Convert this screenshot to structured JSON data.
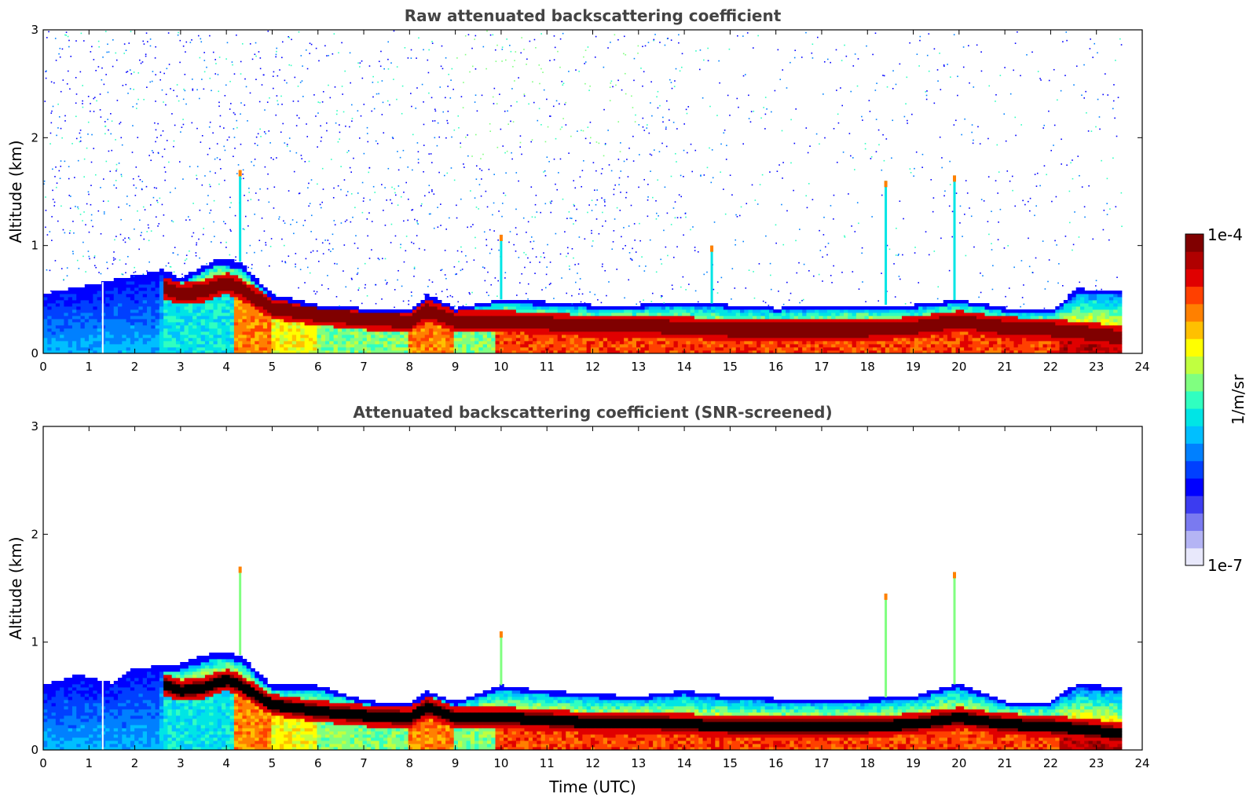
{
  "chart_data": [
    {
      "type": "heatmap",
      "title": "Raw attenuated backscattering coefficient",
      "xlabel": "",
      "ylabel": "Altitude (km)",
      "xlim": [
        0,
        24
      ],
      "ylim": [
        0,
        3
      ],
      "xticks": [
        "0",
        "1",
        "2",
        "3",
        "4",
        "5",
        "6",
        "7",
        "8",
        "9",
        "10",
        "11",
        "12",
        "13",
        "14",
        "15",
        "16",
        "17",
        "18",
        "19",
        "20",
        "21",
        "22",
        "23",
        "24"
      ],
      "yticks": [
        "0",
        "1",
        "2",
        "3"
      ],
      "data_end_time": 23.55,
      "gap_times": [
        1.3
      ],
      "boundary_layer_top_km": [
        [
          0,
          0.55
        ],
        [
          0.8,
          0.62
        ],
        [
          2,
          0.72
        ],
        [
          2.6,
          0.78
        ],
        [
          3,
          0.7
        ],
        [
          3.8,
          0.88
        ],
        [
          4.3,
          0.85
        ],
        [
          5,
          0.55
        ],
        [
          6,
          0.45
        ],
        [
          7,
          0.42
        ],
        [
          8,
          0.4
        ],
        [
          8.4,
          0.55
        ],
        [
          9,
          0.42
        ],
        [
          10,
          0.5
        ],
        [
          11,
          0.48
        ],
        [
          12,
          0.45
        ],
        [
          13,
          0.45
        ],
        [
          14,
          0.48
        ],
        [
          15,
          0.45
        ],
        [
          16,
          0.42
        ],
        [
          17,
          0.45
        ],
        [
          18,
          0.45
        ],
        [
          19,
          0.45
        ],
        [
          20,
          0.5
        ],
        [
          21,
          0.42
        ],
        [
          22,
          0.4
        ],
        [
          22.6,
          0.6
        ],
        [
          23.5,
          0.58
        ]
      ],
      "high_backscatter_layer_km": [
        [
          2.6,
          0.62
        ],
        [
          3,
          0.55
        ],
        [
          3.5,
          0.58
        ],
        [
          4,
          0.65
        ],
        [
          4.3,
          0.6
        ],
        [
          5,
          0.42
        ],
        [
          6,
          0.36
        ],
        [
          7,
          0.32
        ],
        [
          8,
          0.3
        ],
        [
          8.4,
          0.4
        ],
        [
          9,
          0.3
        ],
        [
          10,
          0.3
        ],
        [
          11,
          0.28
        ],
        [
          12,
          0.25
        ],
        [
          13,
          0.26
        ],
        [
          14,
          0.24
        ],
        [
          15,
          0.22
        ],
        [
          16,
          0.22
        ],
        [
          17,
          0.22
        ],
        [
          18,
          0.22
        ],
        [
          19,
          0.24
        ],
        [
          20,
          0.3
        ],
        [
          21,
          0.24
        ],
        [
          22,
          0.22
        ],
        [
          23,
          0.18
        ],
        [
          23.5,
          0.15
        ]
      ],
      "cloud_spikes": [
        {
          "time": 4.3,
          "top_km": 1.7
        },
        {
          "time": 10.0,
          "top_km": 1.1
        },
        {
          "time": 14.6,
          "top_km": 1.0
        },
        {
          "time": 18.4,
          "top_km": 1.6
        },
        {
          "time": 19.9,
          "top_km": 1.65
        }
      ],
      "noise": "high",
      "outline": false
    },
    {
      "type": "heatmap",
      "title": "Attenuated backscattering coefficient (SNR-screened)",
      "xlabel": "Time (UTC)",
      "ylabel": "Altitude (km)",
      "xlim": [
        0,
        24
      ],
      "ylim": [
        0,
        3
      ],
      "xticks": [
        "0",
        "1",
        "2",
        "3",
        "4",
        "5",
        "6",
        "7",
        "8",
        "9",
        "10",
        "11",
        "12",
        "13",
        "14",
        "15",
        "16",
        "17",
        "18",
        "19",
        "20",
        "21",
        "22",
        "23",
        "24"
      ],
      "yticks": [
        "0",
        "1",
        "2",
        "3"
      ],
      "data_end_time": 23.55,
      "gap_times": [
        1.3
      ],
      "boundary_layer_top_km": [
        [
          0,
          0.6
        ],
        [
          0.8,
          0.7
        ],
        [
          1.5,
          0.62
        ],
        [
          2,
          0.76
        ],
        [
          2.6,
          0.78
        ],
        [
          3,
          0.8
        ],
        [
          3.8,
          0.92
        ],
        [
          4.3,
          0.88
        ],
        [
          5,
          0.6
        ],
        [
          6,
          0.6
        ],
        [
          7,
          0.46
        ],
        [
          8,
          0.42
        ],
        [
          8.4,
          0.55
        ],
        [
          9,
          0.45
        ],
        [
          10,
          0.6
        ],
        [
          11,
          0.55
        ],
        [
          12,
          0.52
        ],
        [
          13,
          0.5
        ],
        [
          14,
          0.55
        ],
        [
          15,
          0.5
        ],
        [
          16,
          0.48
        ],
        [
          17,
          0.48
        ],
        [
          18,
          0.48
        ],
        [
          19,
          0.5
        ],
        [
          20,
          0.62
        ],
        [
          21,
          0.45
        ],
        [
          22,
          0.45
        ],
        [
          22.6,
          0.62
        ],
        [
          23.5,
          0.58
        ]
      ],
      "high_backscatter_layer_km": [
        [
          2.6,
          0.62
        ],
        [
          3,
          0.55
        ],
        [
          3.5,
          0.58
        ],
        [
          4,
          0.65
        ],
        [
          4.3,
          0.6
        ],
        [
          5,
          0.42
        ],
        [
          6,
          0.36
        ],
        [
          7,
          0.32
        ],
        [
          8,
          0.3
        ],
        [
          8.4,
          0.4
        ],
        [
          9,
          0.3
        ],
        [
          10,
          0.3
        ],
        [
          11,
          0.28
        ],
        [
          12,
          0.25
        ],
        [
          13,
          0.26
        ],
        [
          14,
          0.24
        ],
        [
          15,
          0.22
        ],
        [
          16,
          0.22
        ],
        [
          17,
          0.22
        ],
        [
          18,
          0.22
        ],
        [
          19,
          0.24
        ],
        [
          20,
          0.3
        ],
        [
          21,
          0.24
        ],
        [
          22,
          0.22
        ],
        [
          23,
          0.18
        ],
        [
          23.5,
          0.15
        ]
      ],
      "cloud_spikes": [
        {
          "time": 4.3,
          "top_km": 1.7
        },
        {
          "time": 10.0,
          "top_km": 1.1
        },
        {
          "time": 18.4,
          "top_km": 1.45
        },
        {
          "time": 19.9,
          "top_km": 1.65
        }
      ],
      "noise": "none",
      "outline": true
    }
  ],
  "colorbar": {
    "label": "1/m/sr",
    "max_label": "1e-4",
    "min_label": "1e-7",
    "min_value": 1e-07,
    "max_value": 0.0001,
    "scale": "log",
    "colors": [
      "#e8e8fb",
      "#b4b4f4",
      "#7a7af0",
      "#3c3cf0",
      "#0000ff",
      "#0040ff",
      "#0080ff",
      "#00bfff",
      "#00e5e5",
      "#30ffc0",
      "#80ff80",
      "#c0ff40",
      "#ffff00",
      "#ffc000",
      "#ff8000",
      "#ff4000",
      "#e00000",
      "#b00000",
      "#800000"
    ]
  }
}
